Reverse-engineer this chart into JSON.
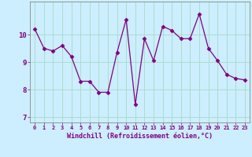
{
  "x": [
    0,
    1,
    2,
    3,
    4,
    5,
    6,
    7,
    8,
    9,
    10,
    11,
    12,
    13,
    14,
    15,
    16,
    17,
    18,
    19,
    20,
    21,
    22,
    23
  ],
  "y": [
    10.2,
    9.5,
    9.4,
    9.6,
    9.2,
    8.3,
    8.3,
    7.9,
    7.9,
    9.35,
    10.55,
    7.45,
    9.85,
    9.05,
    10.3,
    10.15,
    9.85,
    9.85,
    10.75,
    9.5,
    9.05,
    8.55,
    8.4,
    8.35
  ],
  "line_color": "#800080",
  "marker": "D",
  "marker_size": 2.5,
  "bg_color": "#cceeff",
  "grid_color": "#aaddcc",
  "xlabel": "Windchill (Refroidissement éolien,°C)",
  "xlabel_color": "#800080",
  "tick_color": "#800080",
  "ylim": [
    6.8,
    11.2
  ],
  "yticks": [
    7,
    8,
    9,
    10
  ],
  "xticks": [
    0,
    1,
    2,
    3,
    4,
    5,
    6,
    7,
    8,
    9,
    10,
    11,
    12,
    13,
    14,
    15,
    16,
    17,
    18,
    19,
    20,
    21,
    22,
    23
  ]
}
